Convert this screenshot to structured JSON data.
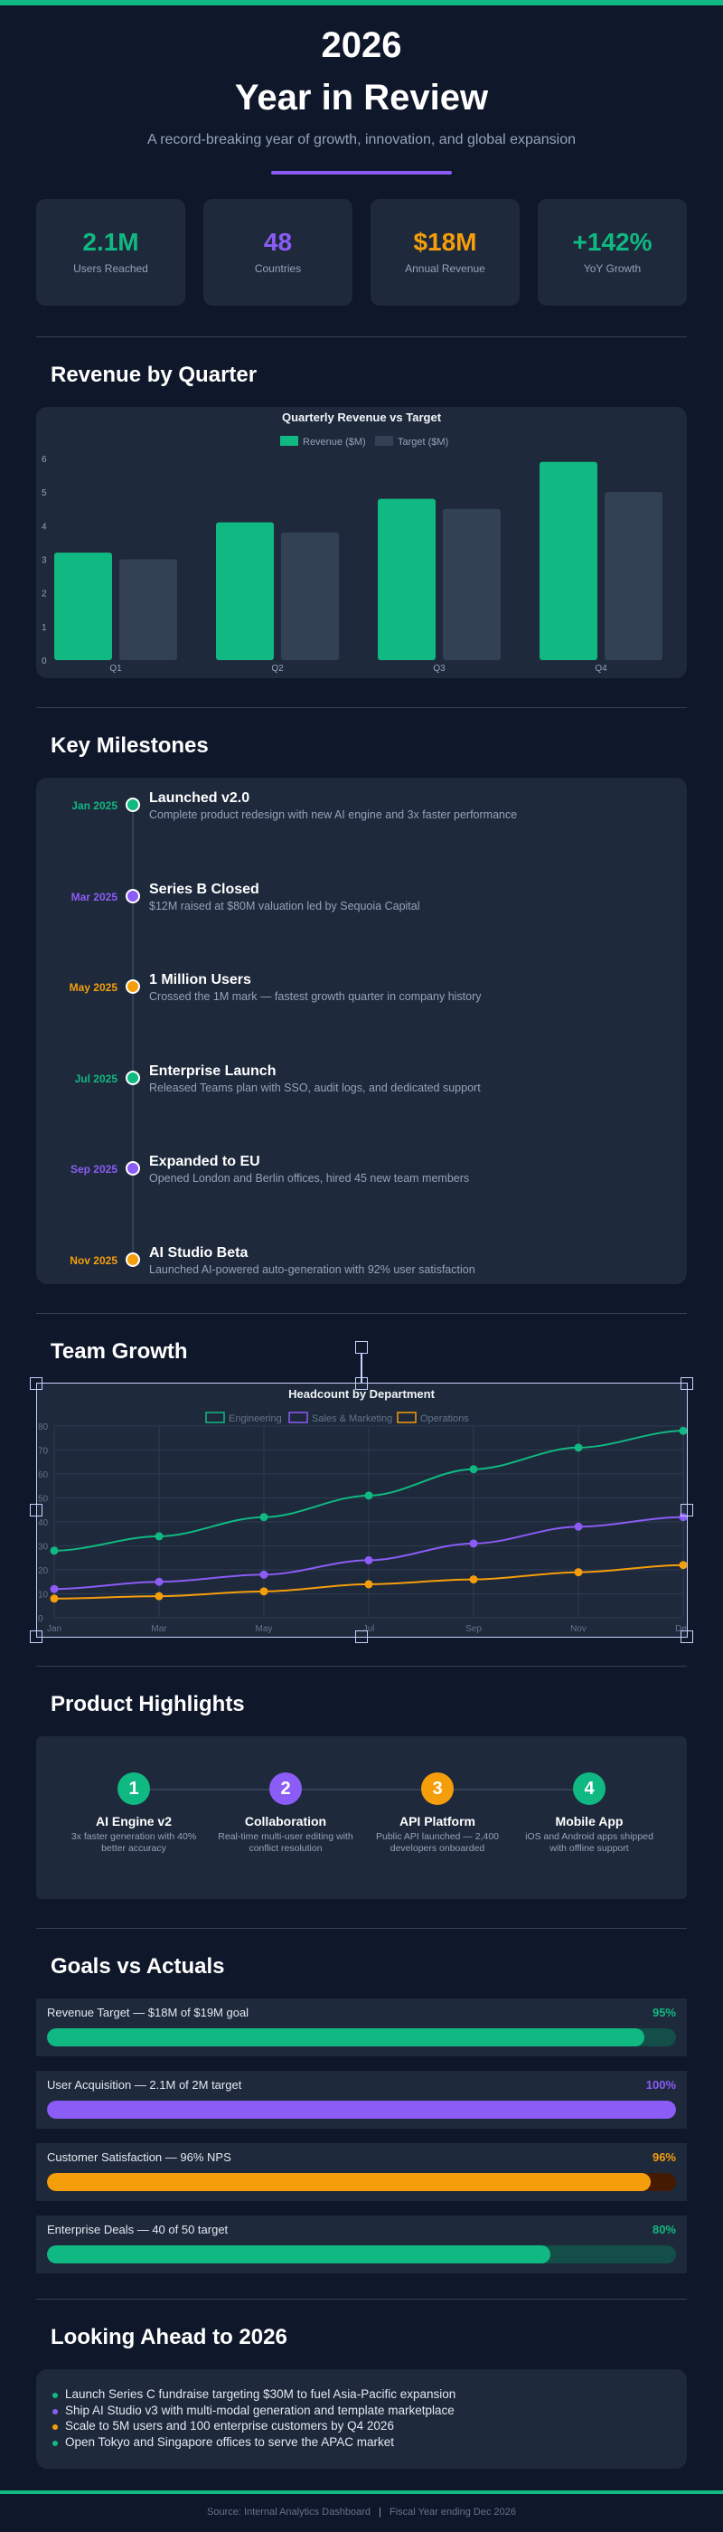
{
  "colors": {
    "green": "#10b981",
    "purple": "#8b5cf6",
    "amber": "#f59e0b",
    "target": "#334155",
    "bg": "#0f172a",
    "card": "#1e293b"
  },
  "header": {
    "year": "2026",
    "title": "Year in Review",
    "subtitle": "A record-breaking year of growth, innovation, and global expansion"
  },
  "stats": [
    {
      "value": "2.1M",
      "label": "Users Reached",
      "color": "#10b981"
    },
    {
      "value": "48",
      "label": "Countries",
      "color": "#8b5cf6"
    },
    {
      "value": "$18M",
      "label": "Annual Revenue",
      "color": "#f59e0b"
    },
    {
      "value": "+142%",
      "label": "YoY Growth",
      "color": "#10b981"
    }
  ],
  "sections": {
    "revenue": "Revenue by Quarter",
    "milestones": "Key Milestones",
    "team": "Team Growth",
    "highlights": "Product Highlights",
    "goals": "Goals vs Actuals",
    "ahead": "Looking Ahead to 2026"
  },
  "chart_data": [
    {
      "type": "bar",
      "title": "Quarterly Revenue vs Target",
      "categories": [
        "Q1",
        "Q2",
        "Q3",
        "Q4"
      ],
      "series": [
        {
          "name": "Revenue ($M)",
          "values": [
            3.2,
            4.1,
            4.8,
            5.9
          ],
          "color": "#10b981"
        },
        {
          "name": "Target ($M)",
          "values": [
            3.0,
            3.8,
            4.5,
            5.0
          ],
          "color": "#334155"
        }
      ],
      "ylim": [
        0,
        6
      ],
      "yticks": [
        0,
        1,
        2,
        3,
        4,
        5,
        6
      ],
      "legend": "top",
      "grid": false
    },
    {
      "type": "line",
      "title": "Headcount by Department",
      "categories": [
        "Jan",
        "Mar",
        "May",
        "Jul",
        "Sep",
        "Nov",
        "Dec"
      ],
      "series": [
        {
          "name": "Engineering",
          "values": [
            28,
            34,
            42,
            51,
            62,
            71,
            78
          ],
          "color": "#10b981"
        },
        {
          "name": "Sales & Marketing",
          "values": [
            12,
            15,
            18,
            24,
            31,
            38,
            42
          ],
          "color": "#8b5cf6"
        },
        {
          "name": "Operations",
          "values": [
            8,
            9,
            11,
            14,
            16,
            19,
            22
          ],
          "color": "#f59e0b"
        }
      ],
      "ylim": [
        0,
        80
      ],
      "yticks": [
        0,
        10,
        20,
        30,
        40,
        50,
        60,
        70,
        80
      ],
      "legend": "top",
      "grid": true
    }
  ],
  "milestones": [
    {
      "date": "Jan 2025",
      "title": "Launched v2.0",
      "desc": "Complete product redesign with new AI engine and 3x faster performance",
      "color": "#10b981"
    },
    {
      "date": "Mar 2025",
      "title": "Series B Closed",
      "desc": "$12M raised at $80M valuation led by Sequoia Capital",
      "color": "#8b5cf6"
    },
    {
      "date": "May 2025",
      "title": "1 Million Users",
      "desc": "Crossed the 1M mark — fastest growth quarter in company history",
      "color": "#f59e0b"
    },
    {
      "date": "Jul 2025",
      "title": "Enterprise Launch",
      "desc": "Released Teams plan with SSO, audit logs, and dedicated support",
      "color": "#10b981"
    },
    {
      "date": "Sep 2025",
      "title": "Expanded to EU",
      "desc": "Opened London and Berlin offices, hired 45 new team members",
      "color": "#8b5cf6"
    },
    {
      "date": "Nov 2025",
      "title": "AI Studio Beta",
      "desc": "Launched AI-powered auto-generation with 92% user satisfaction",
      "color": "#f59e0b"
    }
  ],
  "highlights": [
    {
      "num": "1",
      "title": "AI Engine v2",
      "desc": "3x faster generation with 40% better accuracy",
      "color": "#10b981"
    },
    {
      "num": "2",
      "title": "Collaboration",
      "desc": "Real-time multi-user editing with conflict resolution",
      "color": "#8b5cf6"
    },
    {
      "num": "3",
      "title": "API Platform",
      "desc": "Public API launched — 2,400 developers onboarded",
      "color": "#f59e0b"
    },
    {
      "num": "4",
      "title": "Mobile App",
      "desc": "iOS and Android apps shipped with offline support",
      "color": "#10b981"
    }
  ],
  "goals": [
    {
      "label": "Revenue Target — $18M of $19M goal",
      "pct_text": "95%",
      "percent": 95,
      "color": "#10b981",
      "track": "#134e48"
    },
    {
      "label": "User Acquisition — 2.1M of 2M target",
      "pct_text": "100%",
      "percent": 100,
      "color": "#8b5cf6",
      "track": "#3b2f6b"
    },
    {
      "label": "Customer Satisfaction — 96% NPS",
      "pct_text": "96%",
      "percent": 96,
      "color": "#f59e0b",
      "track": "#451a03"
    },
    {
      "label": "Enterprise Deals — 40 of 50 target",
      "pct_text": "80%",
      "percent": 80,
      "color": "#10b981",
      "track": "#134e48"
    }
  ],
  "ahead": [
    {
      "text": "Launch Series C fundraise targeting $30M to fuel Asia-Pacific expansion",
      "color": "#10b981"
    },
    {
      "text": "Ship AI Studio v3 with multi-modal generation and template marketplace",
      "color": "#8b5cf6"
    },
    {
      "text": "Scale to 5M users and 100 enterprise customers by Q4 2026",
      "color": "#f59e0b"
    },
    {
      "text": "Open Tokyo and Singapore offices to serve the APAC market",
      "color": "#10b981"
    }
  ],
  "footer": {
    "source": "Source: Internal Analytics Dashboard",
    "separator": "|",
    "fiscal": "Fiscal Year ending Dec 2026"
  }
}
